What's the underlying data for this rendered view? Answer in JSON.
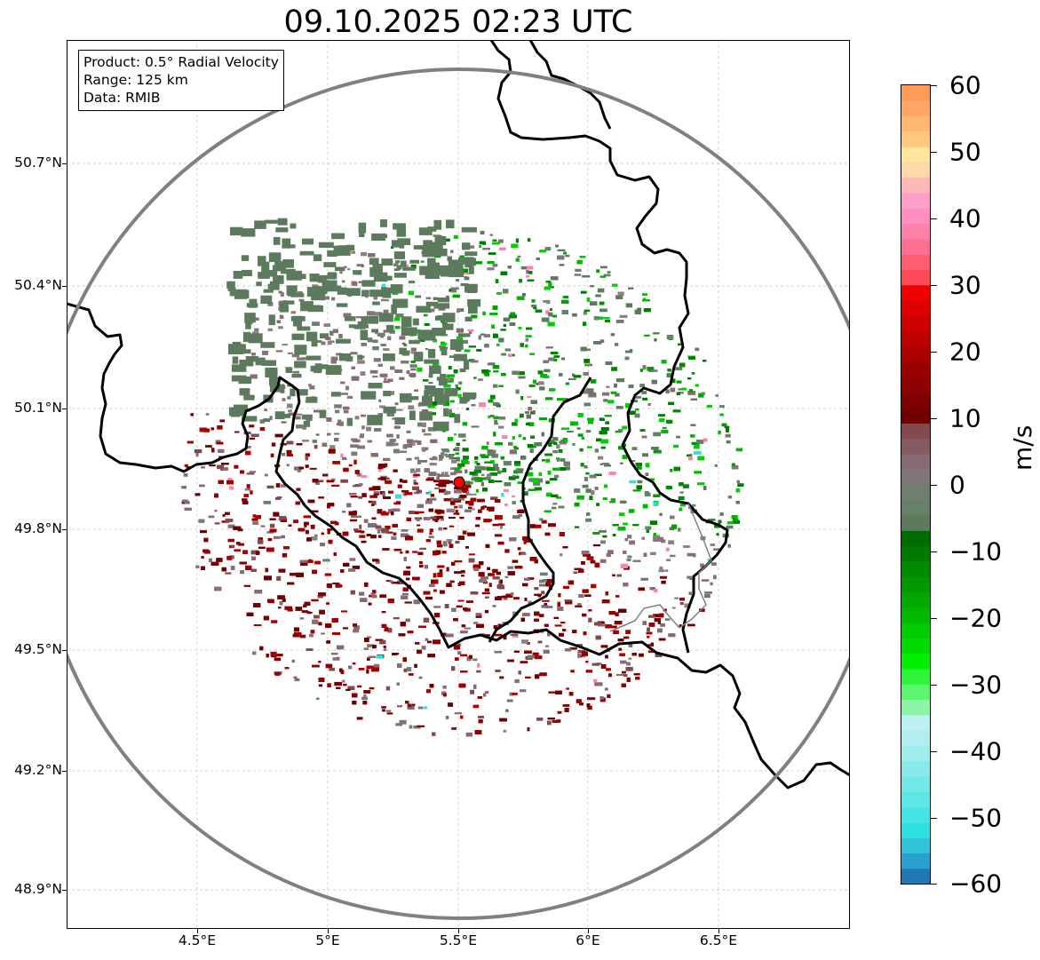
{
  "title": "09.10.2025 02:23 UTC",
  "info": {
    "product": "Product: 0.5° Radial Velocity",
    "range": "Range: 125 km",
    "source": "Data: RMIB"
  },
  "axes": {
    "y_ticks": [
      "50.7°N",
      "50.4°N",
      "50.1°N",
      "49.8°N",
      "49.5°N",
      "49.2°N",
      "48.9°N"
    ],
    "x_ticks": [
      "4.5°E",
      "5°E",
      "5.5°E",
      "6°E",
      "6.5°E"
    ]
  },
  "colorbar": {
    "unit": "m/s",
    "labels": [
      "60",
      "50",
      "40",
      "30",
      "20",
      "10",
      "0",
      "−10",
      "−20",
      "−30",
      "−40",
      "−50",
      "−60"
    ],
    "min": -60,
    "max": 60,
    "colors": [
      "#1f77b4",
      "#2ca0d0",
      "#2fc4d6",
      "#2ee0e0",
      "#47e4e4",
      "#5ce6e6",
      "#72e8e8",
      "#88eaea",
      "#9eecec",
      "#b2eef0",
      "#bff0f2",
      "#8cf5a8",
      "#5cf56e",
      "#2ef53c",
      "#00f000",
      "#00dc00",
      "#00cc00",
      "#00b800",
      "#00a800",
      "#009800",
      "#008a00",
      "#007a00",
      "#006b00",
      "#5c7a5c",
      "#66806a",
      "#707e70",
      "#807878",
      "#866a76",
      "#865a62",
      "#824a4e",
      "#700000",
      "#7e0000",
      "#8c0000",
      "#9a0000",
      "#aa0000",
      "#bc0000",
      "#cc0000",
      "#de0000",
      "#f00000",
      "#ff4a5a",
      "#ff5e70",
      "#ff7090",
      "#ff80a8",
      "#ff8fc0",
      "#ffa0c8",
      "#ffb8b8",
      "#ffd8a8",
      "#ffe69c",
      "#ffc880",
      "#ffb870",
      "#ffa866",
      "#ff9a58"
    ]
  },
  "radar": {
    "site": "RMIB radar",
    "site_lon": 5.5,
    "site_lat": 49.91
  },
  "palette": {
    "ring": "#808080",
    "border": "#000000",
    "inner_border": "#808080",
    "site_marker": "#ff0000"
  }
}
